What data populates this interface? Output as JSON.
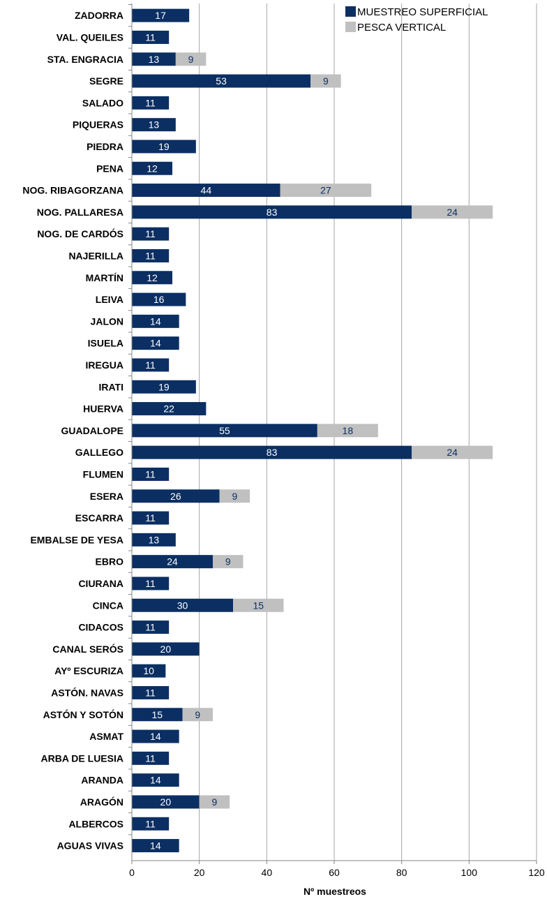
{
  "chart_data": {
    "type": "bar",
    "orientation": "horizontal",
    "stacked": true,
    "title": "",
    "xlabel": "Nº muestreos",
    "ylabel": "",
    "xlim": [
      0,
      120
    ],
    "xticks": [
      0,
      20,
      40,
      60,
      80,
      100,
      120
    ],
    "grid": "vertical",
    "legend_position": "top-right",
    "categories": [
      "ZADORRA",
      "VAL. QUEILES",
      "STA. ENGRACIA",
      "SEGRE",
      "SALADO",
      "PIQUERAS",
      "PIEDRA",
      "PENA",
      "NOG. RIBAGORZANA",
      "NOG. PALLARESA",
      "NOG. DE CARDÓS",
      "NAJERILLA",
      "MARTÍN",
      "LEIVA",
      "JALON",
      "ISUELA",
      "IREGUA",
      "IRATI",
      "HUERVA",
      "GUADALOPE",
      "GALLEGO",
      "FLUMEN",
      "ESERA",
      "ESCARRA",
      "EMBALSE DE YESA",
      "EBRO",
      "CIURANA",
      "CINCA",
      "CIDACOS",
      "CANAL SERÓS",
      "AYº ESCURIZA",
      "ASTÓN. NAVAS",
      "ASTÓN Y SOTÓN",
      "ASMAT",
      "ARBA DE LUESIA",
      "ARANDA",
      "ARAGÓN",
      "ALBERCOS",
      "AGUAS VIVAS"
    ],
    "series": [
      {
        "name": "MUESTREO SUPERFICIAL",
        "color": "#0b2f63",
        "values": [
          17,
          11,
          13,
          53,
          11,
          13,
          19,
          12,
          44,
          83,
          11,
          11,
          12,
          16,
          14,
          14,
          11,
          19,
          22,
          55,
          83,
          11,
          26,
          11,
          13,
          24,
          11,
          30,
          11,
          20,
          10,
          11,
          15,
          14,
          11,
          14,
          20,
          11,
          14
        ]
      },
      {
        "name": "PESCA VERTICAL",
        "color": "#c0c0c0",
        "values": [
          0,
          0,
          9,
          9,
          0,
          0,
          0,
          0,
          27,
          24,
          0,
          0,
          0,
          0,
          0,
          0,
          0,
          0,
          0,
          18,
          24,
          0,
          9,
          0,
          0,
          9,
          0,
          15,
          0,
          0,
          0,
          0,
          9,
          0,
          0,
          0,
          9,
          0,
          0
        ]
      }
    ]
  }
}
